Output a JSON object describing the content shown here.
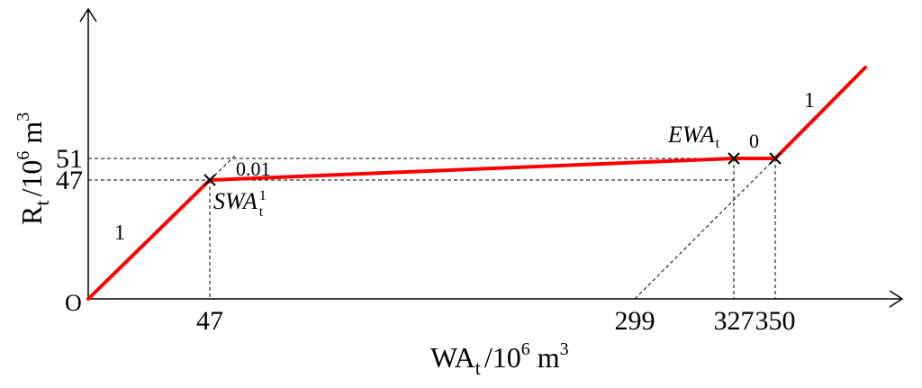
{
  "chart_data": {
    "type": "line",
    "origin_label": "O",
    "xlabel": {
      "main": "WA",
      "sub": "t",
      "unit_pre": "/10",
      "sup": "6",
      "unit": " m",
      "unit_sup": "3"
    },
    "ylabel": {
      "main": "R",
      "sub": "t",
      "unit_pre": "/10",
      "sup": "6",
      "unit": " m",
      "unit_sup": "3"
    },
    "x_ticks": [
      "47",
      "299",
      "327",
      "350"
    ],
    "y_ticks": [
      "47",
      "51"
    ],
    "x_tick_values": [
      47,
      299,
      327,
      350
    ],
    "y_tick_values": [
      47,
      51
    ],
    "series": [
      {
        "color": "#ff0000",
        "x": [
          0,
          47,
          327,
          350,
          390
        ],
        "y": [
          0,
          47,
          51,
          51,
          91
        ]
      }
    ],
    "markers": [
      {
        "x": 47,
        "y": 47,
        "label_main": "SWA",
        "label_sub": "t",
        "label_sup": "1"
      },
      {
        "x": 327,
        "y": 51,
        "label_main": "EWA",
        "label_sub": "t",
        "label_sup": ""
      },
      {
        "x": 350,
        "y": 51,
        "label_main": "",
        "label_sub": "",
        "label_sup": ""
      }
    ],
    "slope_labels": [
      "1",
      "0.01",
      "0",
      "1"
    ],
    "colors": {
      "line": "#ff0000",
      "axes": "#000000"
    },
    "grid": false
  }
}
